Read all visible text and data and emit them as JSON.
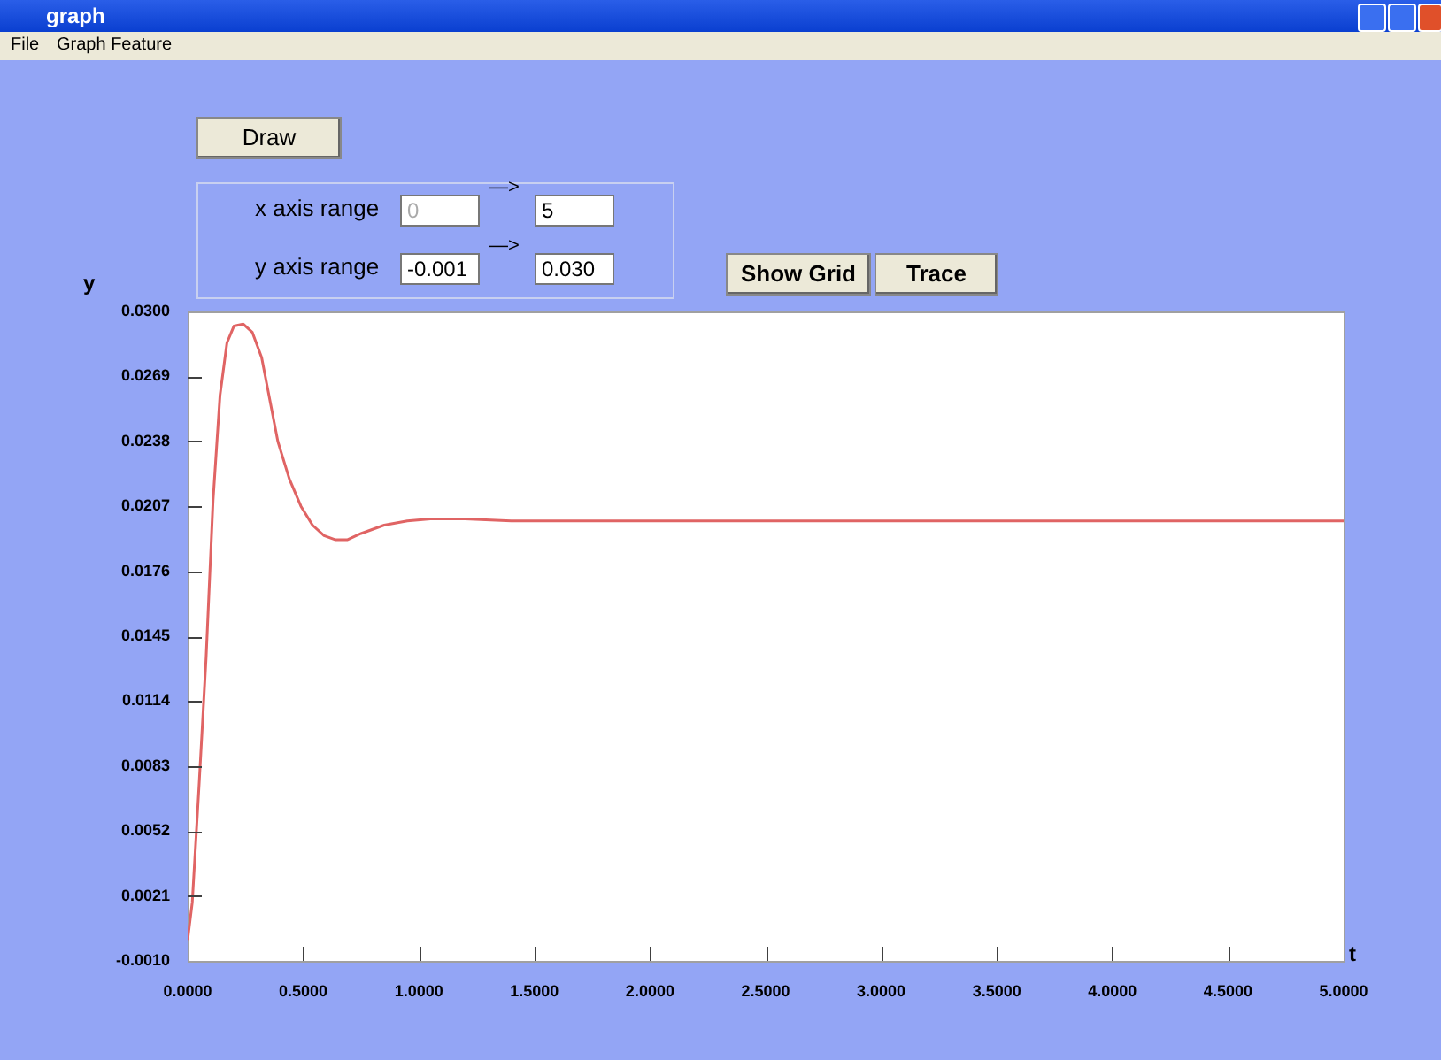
{
  "chart_data": {
    "type": "line",
    "title": "graph",
    "xlabel": "t",
    "ylabel": "y",
    "annotations": [
      "File",
      "Graph Feature",
      "Draw",
      "x axis range",
      "0",
      "—>",
      "5",
      "y axis range",
      "-0.001",
      "—>",
      "0.030",
      "Show Grid",
      "Trace"
    ],
    "series": [
      {
        "color": "#e06464",
        "x": [
          0,
          0.02,
          0.05,
          0.08,
          0.11,
          0.14,
          0.17,
          0.2,
          0.24,
          0.28,
          0.32,
          0.39,
          0.44,
          0.49,
          0.54,
          0.59,
          0.64,
          0.69,
          0.75,
          0.85,
          0.95,
          1.05,
          1.2,
          1.4,
          2,
          3,
          4,
          5
        ],
        "values": [
          0,
          0.0018,
          0.0075,
          0.0135,
          0.021,
          0.026,
          0.0285,
          0.0293,
          0.0294,
          0.029,
          0.0278,
          0.0238,
          0.022,
          0.0207,
          0.0198,
          0.0193,
          0.0191,
          0.0191,
          0.0194,
          0.0198,
          0.02,
          0.0201,
          0.0201,
          0.02,
          0.02,
          0.02,
          0.02,
          0.02
        ]
      }
    ],
    "xlim": [
      0,
      5
    ],
    "xticks": [
      {
        "value": 0,
        "label": "0.0000"
      },
      {
        "value": 0.5,
        "label": "0.5000"
      },
      {
        "value": 1,
        "label": "1.0000"
      },
      {
        "value": 1.5,
        "label": "1.5000"
      },
      {
        "value": 2,
        "label": "2.0000"
      },
      {
        "value": 2.5,
        "label": "2.5000"
      },
      {
        "value": 3,
        "label": "3.0000"
      },
      {
        "value": 3.5,
        "label": "3.5000"
      },
      {
        "value": 4,
        "label": "4.0000"
      },
      {
        "value": 4.5,
        "label": "4.5000"
      },
      {
        "value": 5,
        "label": "5.0000"
      }
    ],
    "ylim": [
      -0.001,
      0.03
    ],
    "yticks": [
      {
        "value": -0.001,
        "label": "-0.0010"
      },
      {
        "value": 0.0021,
        "label": "0.0021"
      },
      {
        "value": 0.0052,
        "label": "0.0052"
      },
      {
        "value": 0.0083,
        "label": "0.0083"
      },
      {
        "value": 0.0114,
        "label": "0.0114"
      },
      {
        "value": 0.0145,
        "label": "0.0145"
      },
      {
        "value": 0.0176,
        "label": "0.0176"
      },
      {
        "value": 0.0207,
        "label": "0.0207"
      },
      {
        "value": 0.0238,
        "label": "0.0238"
      },
      {
        "value": 0.0269,
        "label": "0.0269"
      },
      {
        "value": 0.03,
        "label": "0.0300"
      }
    ],
    "grid": false,
    "legend": false,
    "marker": "none",
    "line_style": "solid"
  }
}
